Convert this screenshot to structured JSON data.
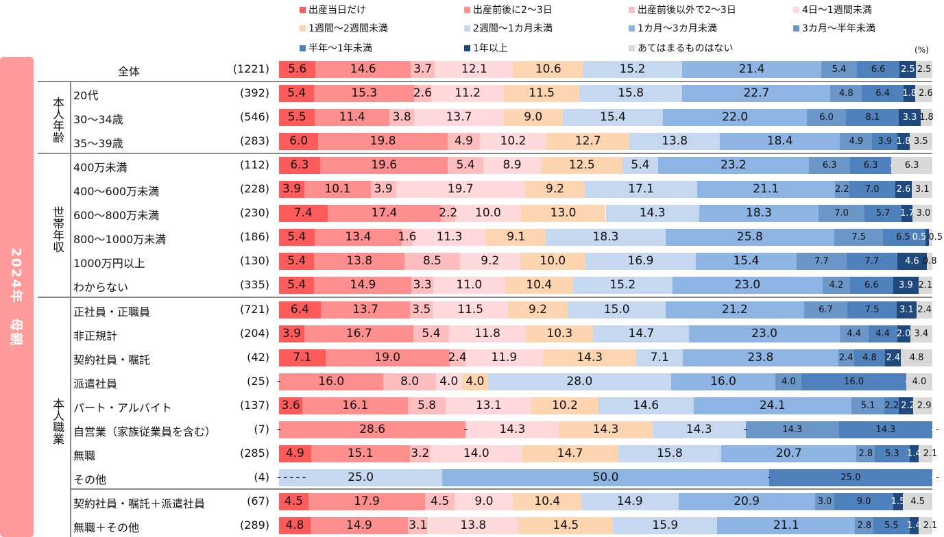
{
  "side_title": "2024年　母親",
  "unit": "(%)",
  "chart_data": {
    "type": "bar",
    "orientation": "horizontal-stacked-100",
    "xlim": [
      0,
      100
    ],
    "series": [
      {
        "name": "出産当日だけ",
        "color": "#FF5B5B"
      },
      {
        "name": "出産前後に2～3日",
        "color": "#FF8F8F"
      },
      {
        "name": "出産前後以外で2～3日",
        "color": "#FFBDBD"
      },
      {
        "name": "4日～1週間未満",
        "color": "#FFD9DC"
      },
      {
        "name": "1週間～2週間未満",
        "color": "#FDD5B1"
      },
      {
        "name": "2週間～1カ月未満",
        "color": "#C6D8EF"
      },
      {
        "name": "1カ月～3カ月未満",
        "color": "#8EB4E3"
      },
      {
        "name": "3カ月～半年未満",
        "color": "#6A96C8"
      },
      {
        "name": "半年～1年未満",
        "color": "#4F81BD"
      },
      {
        "name": "1年以上",
        "color": "#1F497D"
      },
      {
        "name": "あてはまるものはない",
        "color": "#D9D9D9"
      }
    ],
    "groups": [
      {
        "label": "本人年齢"
      },
      {
        "label": "世帯年収"
      },
      {
        "label": "本人職業"
      }
    ],
    "rows": [
      {
        "label": "全体",
        "n": "(1221)",
        "values": [
          5.6,
          14.6,
          3.7,
          12.1,
          10.6,
          15.2,
          21.4,
          5.4,
          6.6,
          2.5,
          2.5
        ]
      },
      {
        "label": "20代",
        "n": "(392)",
        "values": [
          5.4,
          15.3,
          2.6,
          11.2,
          11.5,
          15.8,
          22.7,
          4.8,
          6.4,
          1.8,
          2.6
        ]
      },
      {
        "label": "30～34歳",
        "n": "(546)",
        "values": [
          5.5,
          11.4,
          3.8,
          13.7,
          9.0,
          15.4,
          22.0,
          6.0,
          8.1,
          3.3,
          1.8
        ]
      },
      {
        "label": "35～39歳",
        "n": "(283)",
        "values": [
          6.0,
          19.8,
          4.9,
          10.2,
          12.7,
          13.8,
          18.4,
          4.9,
          3.9,
          1.8,
          3.5
        ]
      },
      {
        "label": "400万未満",
        "n": "(112)",
        "values": [
          6.3,
          19.6,
          5.4,
          8.9,
          12.5,
          5.4,
          23.2,
          6.3,
          6.3,
          0,
          6.3
        ]
      },
      {
        "label": "400～600万未満",
        "n": "(228)",
        "values": [
          3.9,
          10.1,
          3.9,
          19.7,
          9.2,
          17.1,
          21.1,
          2.2,
          7.0,
          2.6,
          3.1
        ]
      },
      {
        "label": "600～800万未満",
        "n": "(230)",
        "values": [
          7.4,
          17.4,
          2.2,
          10.0,
          13.0,
          14.3,
          18.3,
          7.0,
          5.7,
          1.7,
          3.0
        ]
      },
      {
        "label": "800～1000万未満",
        "n": "(186)",
        "values": [
          5.4,
          13.4,
          1.6,
          11.3,
          9.1,
          18.3,
          25.8,
          7.5,
          6.5,
          0.5,
          0.5
        ]
      },
      {
        "label": "1000万円以上",
        "n": "(130)",
        "values": [
          5.4,
          13.8,
          8.5,
          9.2,
          10.0,
          16.9,
          15.4,
          7.7,
          7.7,
          4.6,
          0.8
        ]
      },
      {
        "label": "わからない",
        "n": "(335)",
        "values": [
          5.4,
          14.9,
          3.3,
          11.0,
          10.4,
          15.2,
          23.0,
          4.2,
          6.6,
          3.9,
          2.1
        ]
      },
      {
        "label": "正社員・正職員",
        "n": "(721)",
        "values": [
          6.4,
          13.7,
          3.5,
          11.5,
          9.2,
          15.0,
          21.2,
          6.7,
          7.5,
          3.1,
          2.4
        ]
      },
      {
        "label": "非正規計",
        "n": "(204)",
        "values": [
          3.9,
          16.7,
          5.4,
          11.8,
          10.3,
          14.7,
          23.0,
          4.4,
          4.4,
          2.0,
          3.4
        ]
      },
      {
        "label": "契約社員・嘱託",
        "n": "(42)",
        "values": [
          7.1,
          19.0,
          2.4,
          11.9,
          14.3,
          7.1,
          23.8,
          2.4,
          4.8,
          2.4,
          4.8
        ]
      },
      {
        "label": "派遣社員",
        "n": "(25)",
        "values": [
          0,
          16.0,
          8.0,
          4.0,
          4.0,
          28.0,
          16.0,
          4.0,
          16.0,
          0,
          4.0
        ]
      },
      {
        "label": "パート・アルバイト",
        "n": "(137)",
        "values": [
          3.6,
          16.1,
          5.8,
          13.1,
          10.2,
          14.6,
          24.1,
          5.1,
          2.2,
          2.2,
          2.9
        ]
      },
      {
        "label": "自営業（家族従業員を含む）",
        "n": "(7)",
        "values": [
          0,
          28.6,
          0,
          14.3,
          14.3,
          14.3,
          0,
          14.3,
          14.3,
          0,
          0
        ]
      },
      {
        "label": "無職",
        "n": "(285)",
        "values": [
          4.9,
          15.1,
          3.2,
          14.0,
          14.7,
          15.8,
          20.7,
          2.8,
          5.3,
          1.4,
          2.1
        ]
      },
      {
        "label": "その他",
        "n": "(4)",
        "values": [
          0,
          0,
          0,
          0,
          0,
          25.0,
          50.0,
          0,
          25.0,
          0,
          0
        ]
      },
      {
        "label": "契約社員・嘱託＋派遣社員",
        "n": "(67)",
        "values": [
          4.5,
          17.9,
          4.5,
          9.0,
          10.4,
          14.9,
          20.9,
          3.0,
          9.0,
          1.5,
          4.5
        ]
      },
      {
        "label": "無職＋その他",
        "n": "(289)",
        "values": [
          4.8,
          14.9,
          3.1,
          13.8,
          14.5,
          15.9,
          21.1,
          2.8,
          5.5,
          1.4,
          2.1
        ]
      }
    ]
  }
}
